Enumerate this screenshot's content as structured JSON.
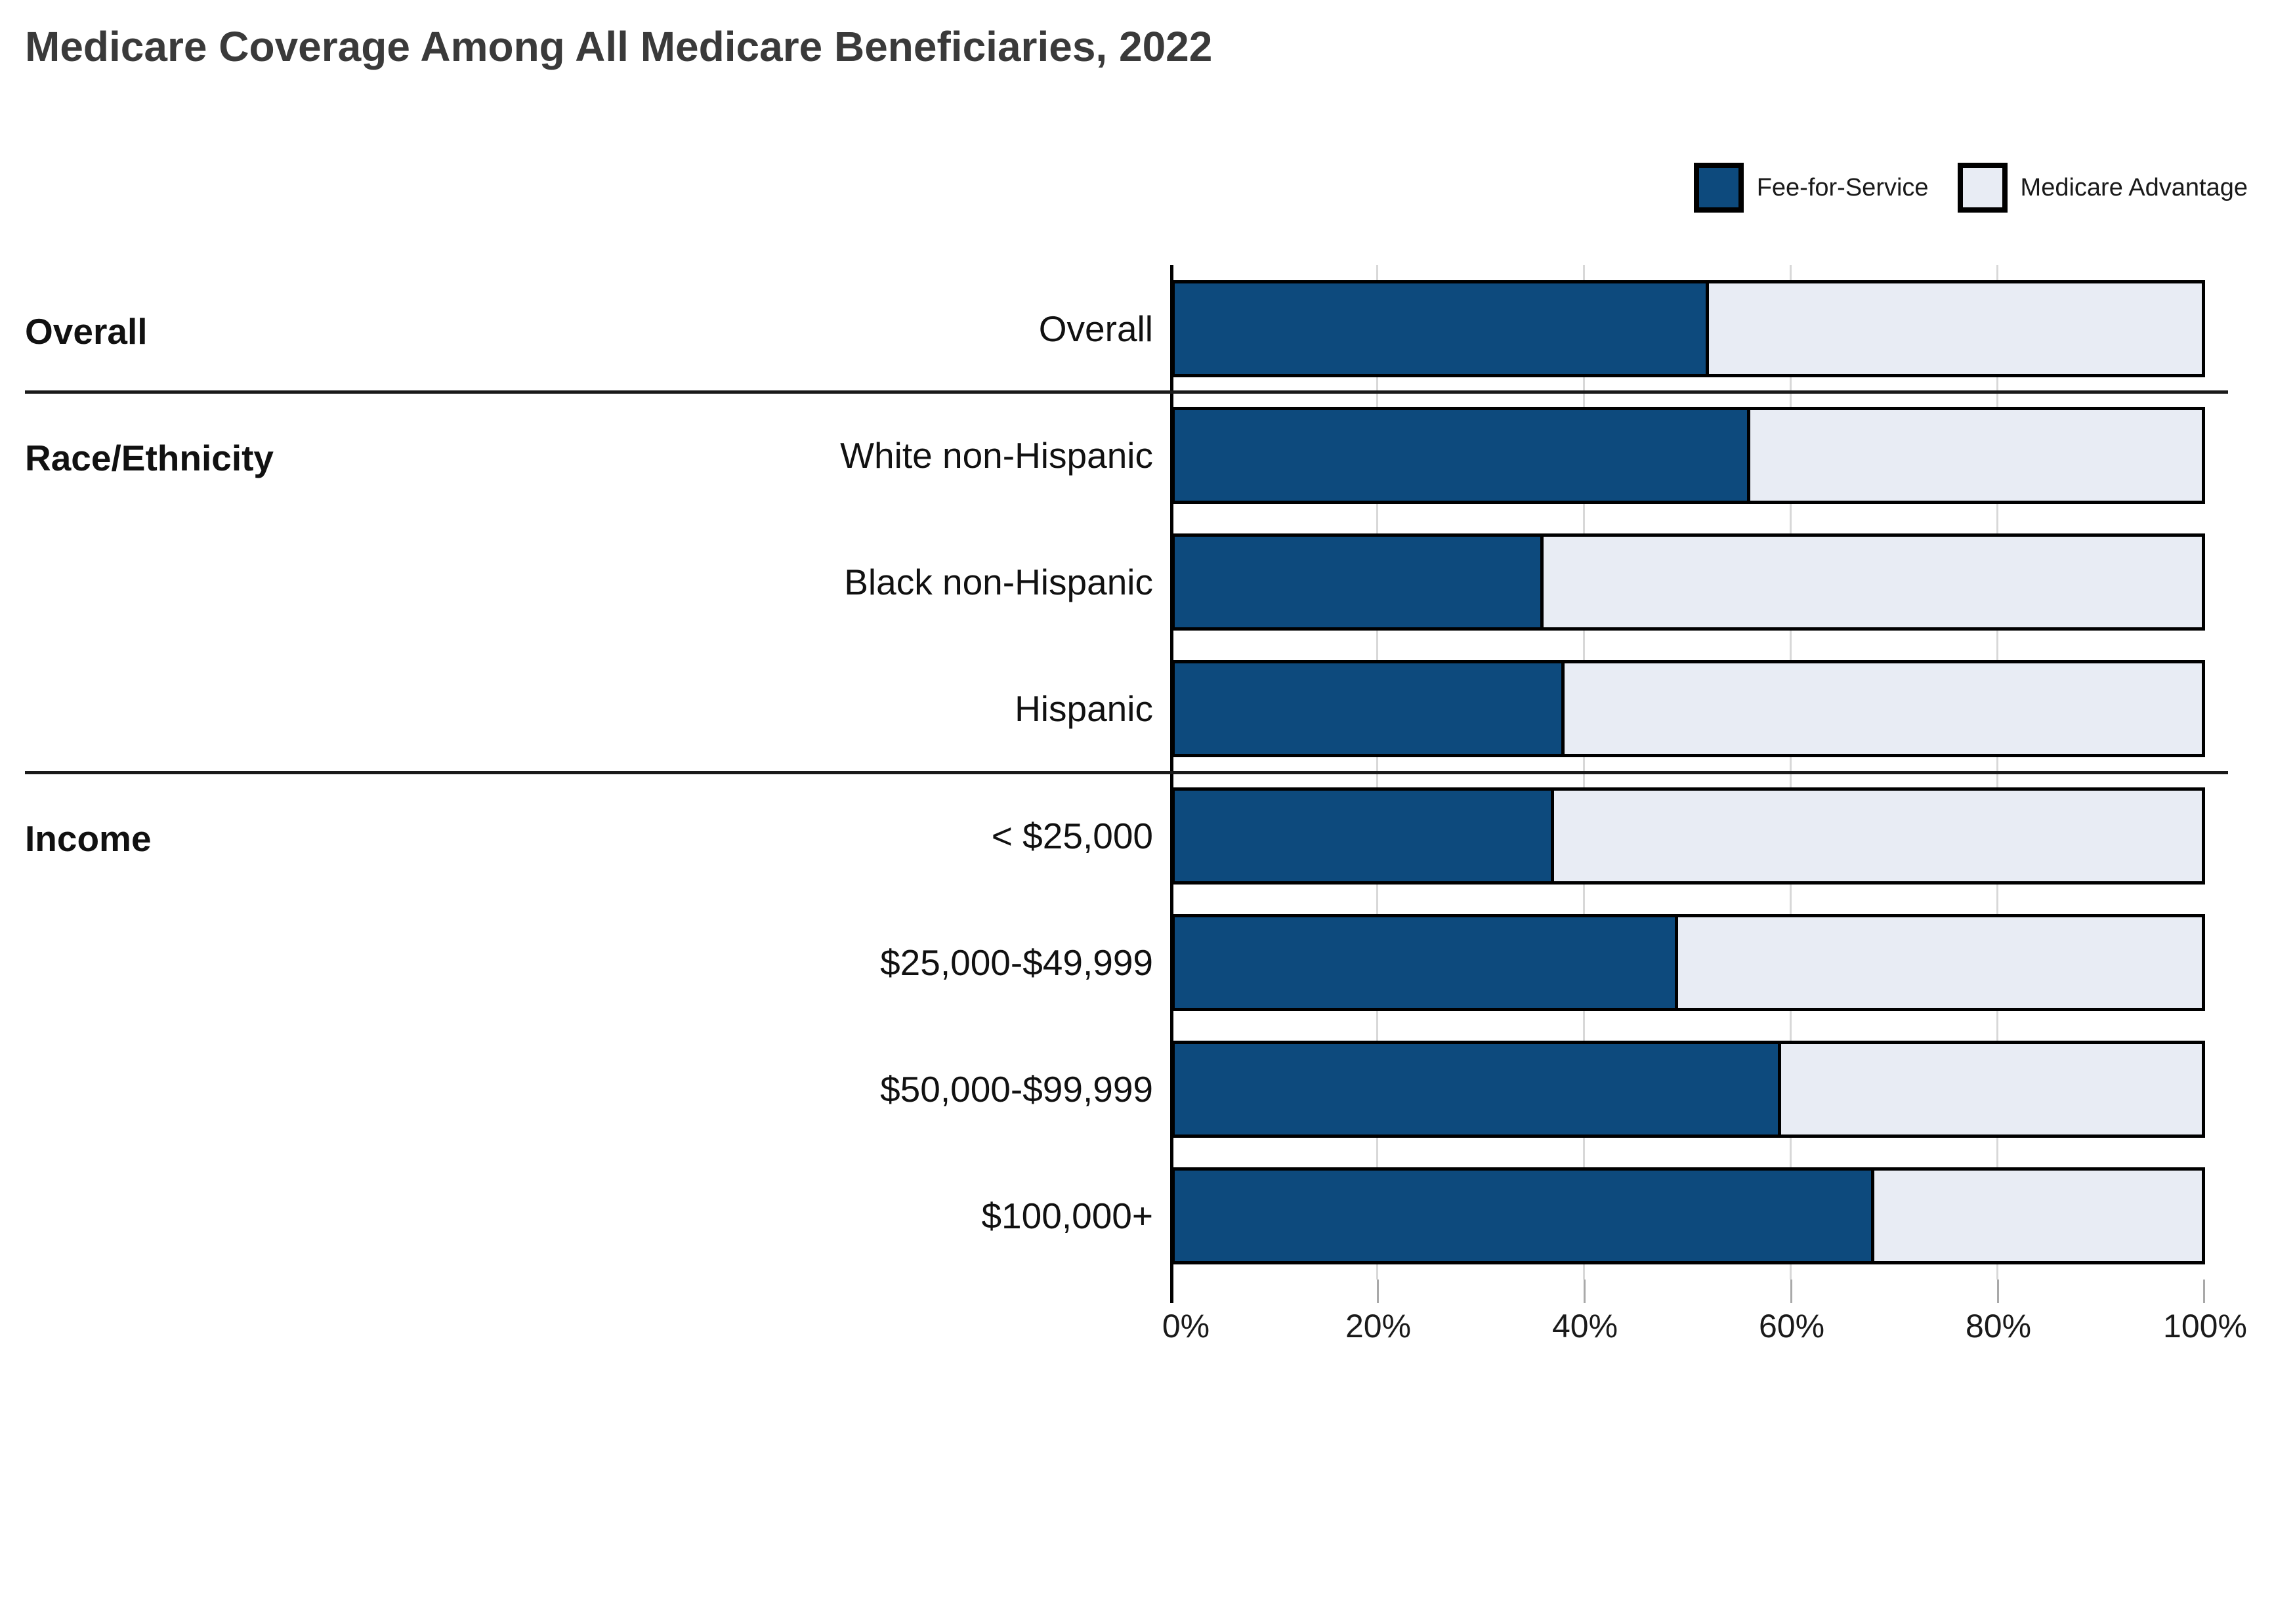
{
  "title": "Medicare Coverage Among All Medicare Beneficiaries, 2022",
  "legend": [
    {
      "label": "Fee-for-Service",
      "color": "#0d4a7d"
    },
    {
      "label": "Medicare Advantage",
      "color": "#e8ecf4"
    }
  ],
  "colors": {
    "fee_for_service": "#0d4a7d",
    "medicare_advantage": "#e8ecf4",
    "bar_border": "#000000",
    "gridline": "#d8d8d8",
    "title_text": "#3a3a3a"
  },
  "chart_data": {
    "type": "bar",
    "subtype": "stacked-horizontal",
    "title": "Medicare Coverage Among All Medicare Beneficiaries, 2022",
    "xlabel": "",
    "ylabel": "",
    "xlim": [
      0,
      100
    ],
    "x_ticks": [
      "0%",
      "20%",
      "40%",
      "60%",
      "80%",
      "100%"
    ],
    "grid": "vertical",
    "legend_position": "top-right",
    "categories": [
      "Overall",
      "White non-Hispanic",
      "Black non-Hispanic",
      "Hispanic",
      "< $25,000",
      "$25,000-$49,999",
      "$50,000-$99,999",
      "$100,000+"
    ],
    "groups": [
      {
        "label": "Overall",
        "rows": [
          "Overall"
        ]
      },
      {
        "label": "Race/Ethnicity",
        "rows": [
          "White non-Hispanic",
          "Black non-Hispanic",
          "Hispanic"
        ]
      },
      {
        "label": "Income",
        "rows": [
          "< $25,000",
          "$25,000-$49,999",
          "$50,000-$99,999",
          "$100,000+"
        ]
      }
    ],
    "series": [
      {
        "name": "Fee-for-Service",
        "values": [
          52,
          56,
          36,
          38,
          37,
          49,
          59,
          68
        ]
      },
      {
        "name": "Medicare Advantage",
        "values": [
          48,
          44,
          64,
          62,
          63,
          51,
          41,
          32
        ]
      }
    ]
  }
}
